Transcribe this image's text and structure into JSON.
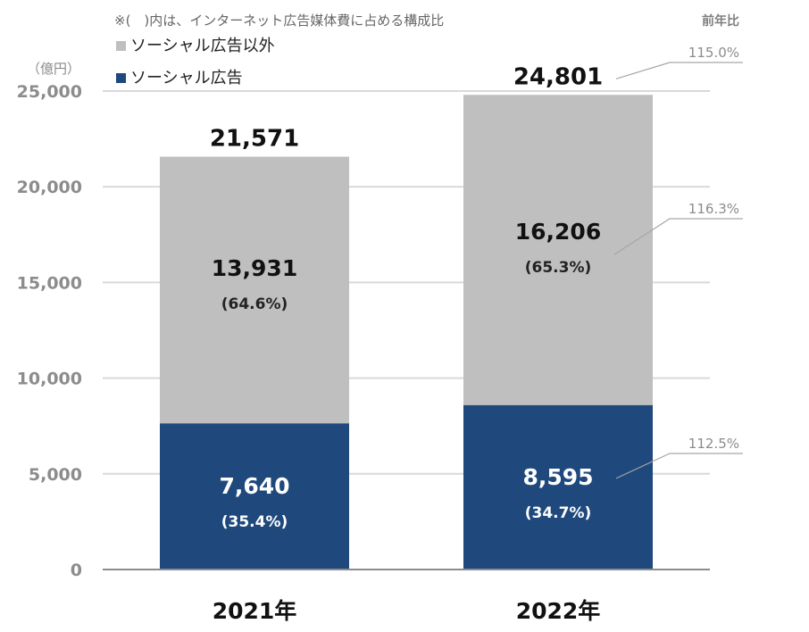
{
  "chart_data": {
    "type": "bar",
    "stacked": true,
    "unit": "（億円）",
    "note": "※(　)内は、インターネット広告媒体費に占める構成比",
    "yoy_header": "前年比",
    "categories": [
      "2021年",
      "2022年"
    ],
    "ylim": [
      0,
      25000
    ],
    "yticks": [
      0,
      5000,
      10000,
      15000,
      20000,
      25000
    ],
    "ytick_labels": [
      "0",
      "5,000",
      "10,000",
      "15,000",
      "20,000",
      "25,000"
    ],
    "grid": true,
    "legend_position": "top-left",
    "series": [
      {
        "name": "ソーシャル広告",
        "color": "#1f497d",
        "values": [
          7640,
          8595
        ],
        "value_labels": [
          "7,640",
          "8,595"
        ],
        "share_labels": [
          "(35.4%)",
          "(34.7%)"
        ],
        "yoy": "112.5%"
      },
      {
        "name": "ソーシャル広告以外",
        "color": "#bfbfbf",
        "values": [
          13931,
          16206
        ],
        "value_labels": [
          "13,931",
          "16,206"
        ],
        "share_labels": [
          "(64.6%)",
          "(65.3%)"
        ],
        "yoy": "116.3%"
      }
    ],
    "totals": [
      21571,
      24801
    ],
    "total_labels": [
      "21,571",
      "24,801"
    ],
    "total_yoy": "115.0%"
  }
}
